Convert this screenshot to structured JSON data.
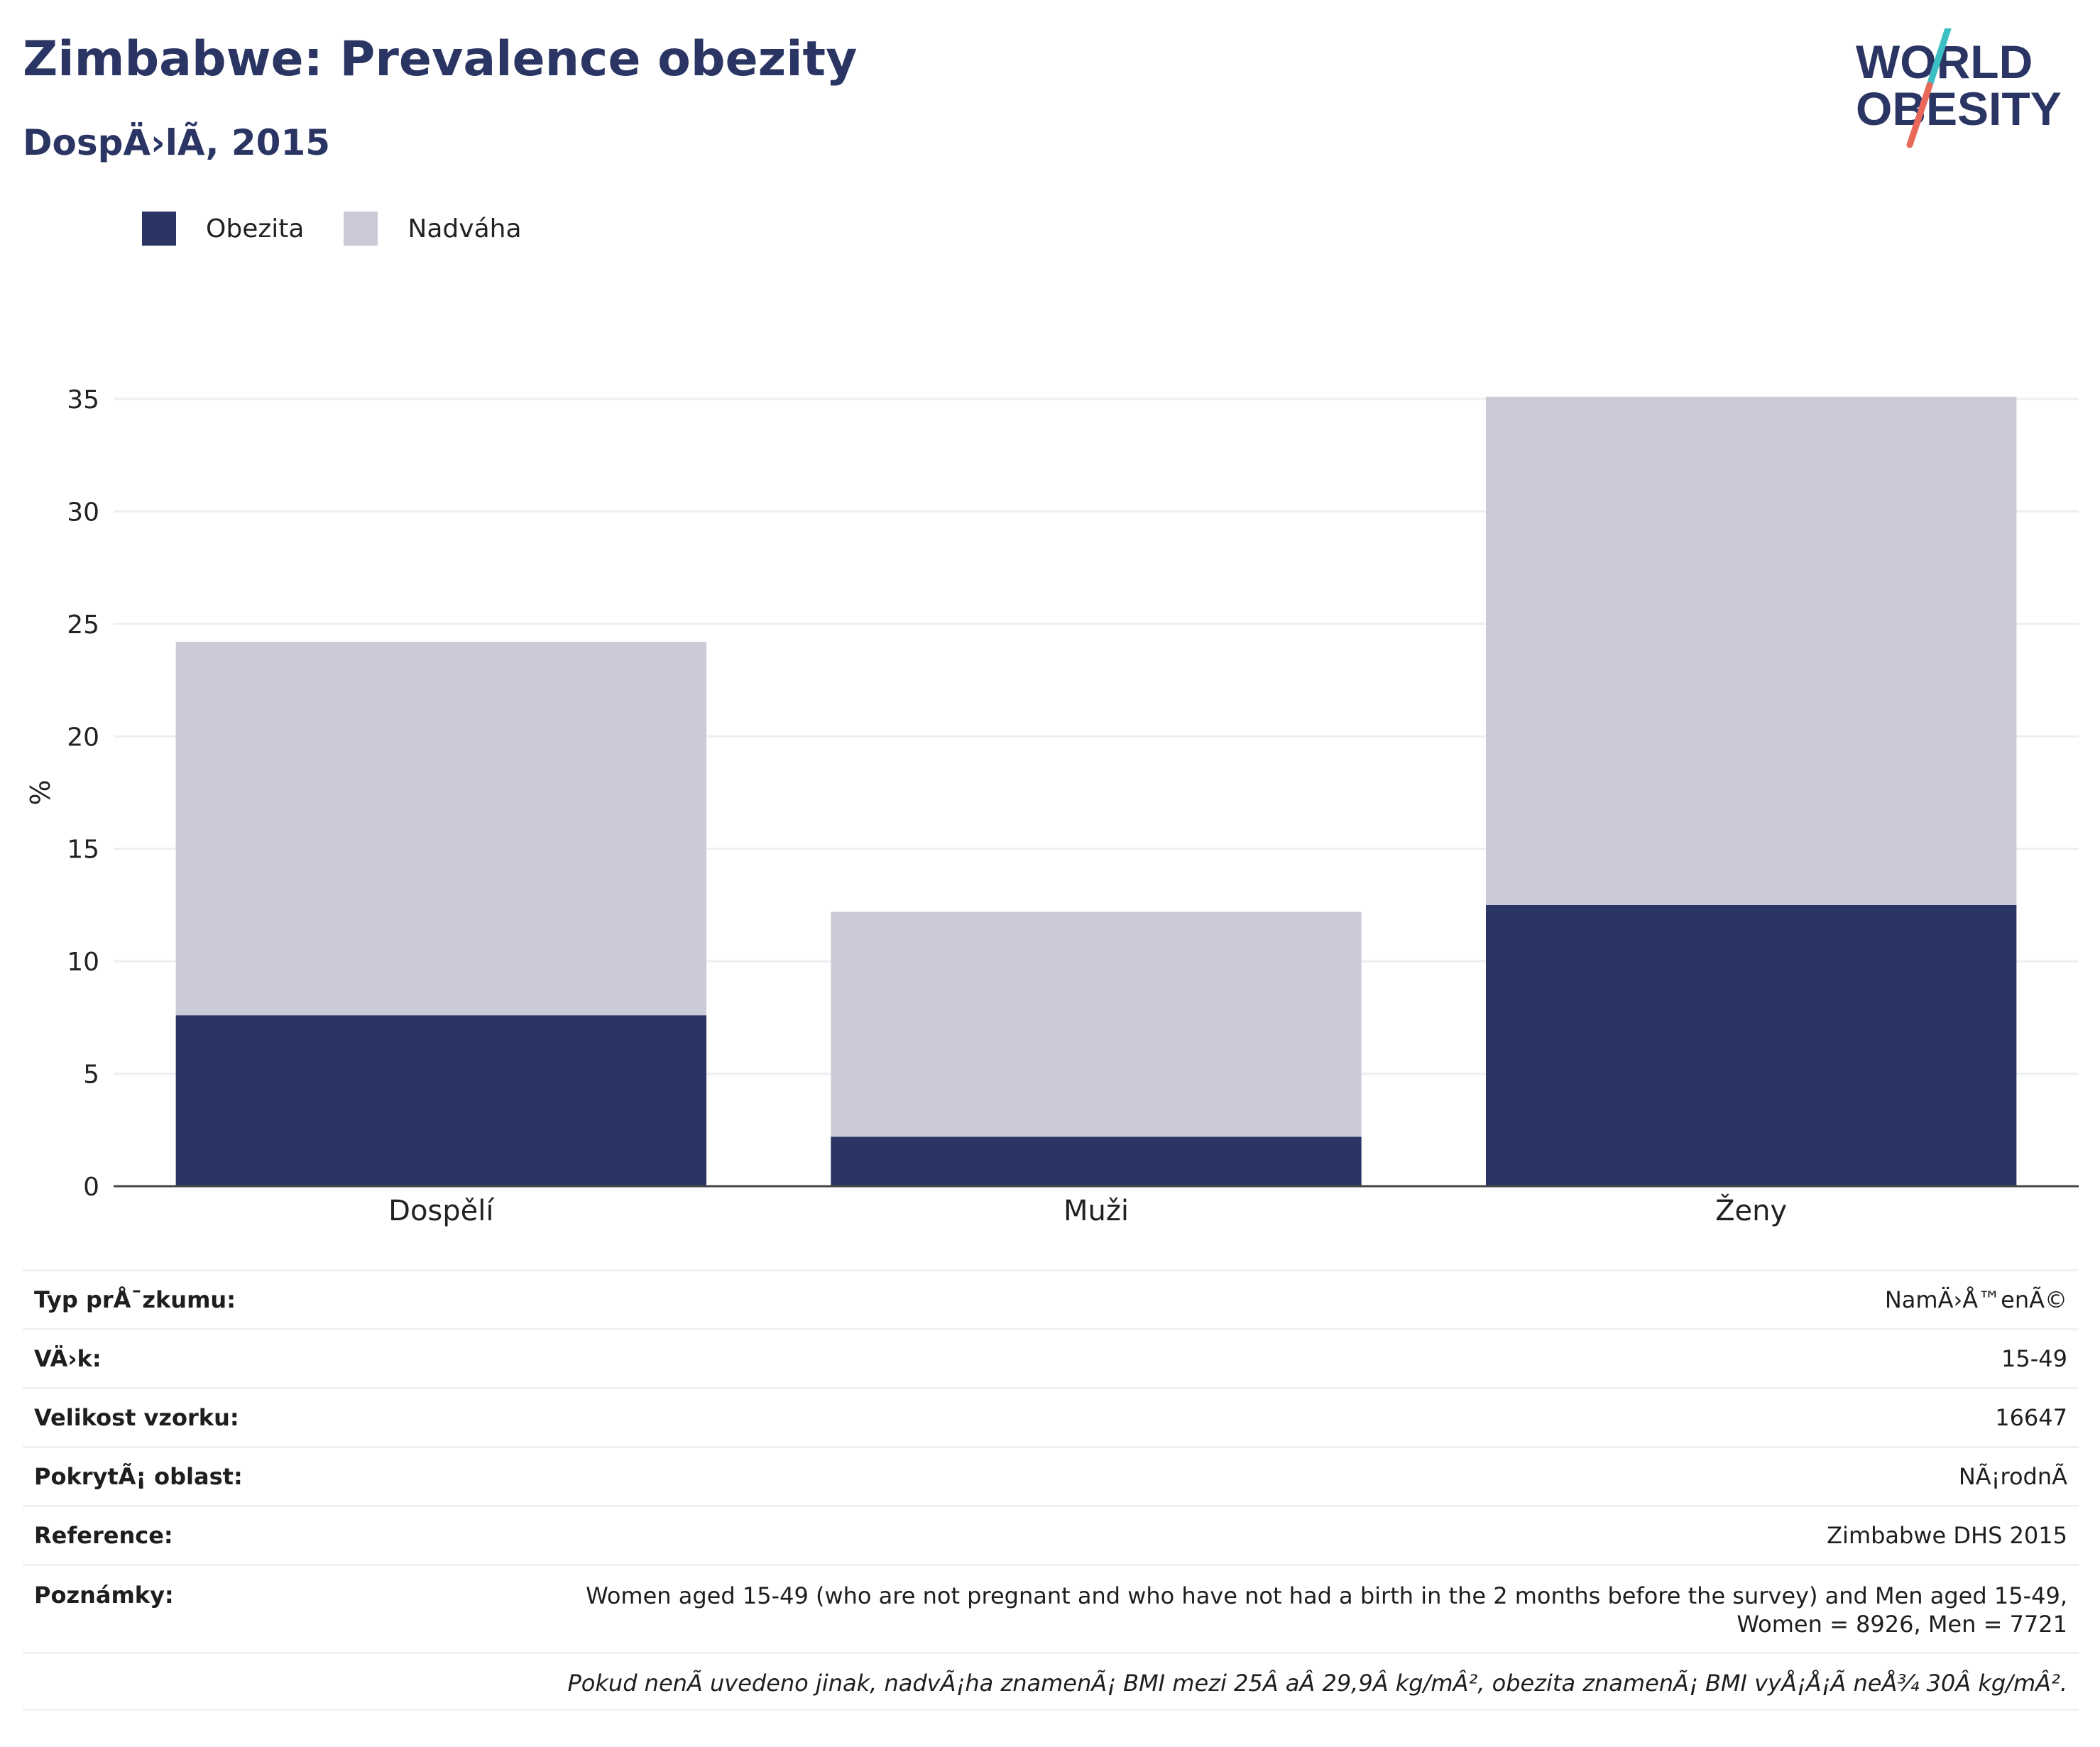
{
  "header": {
    "title": "Zimbabwe: Prevalence obezity",
    "subtitle": "DospÄ›lÃ­, 2015"
  },
  "logo": {
    "line1": "WORLD",
    "line2": "OBESITY",
    "accent_teal": "#3bbfc3",
    "accent_red": "#e8685a"
  },
  "legend": {
    "items": [
      {
        "label": "Obezita",
        "color": "#2a3563"
      },
      {
        "label": "Nadváha",
        "color": "#cacbd6"
      }
    ]
  },
  "chart_data": {
    "type": "bar",
    "stacked": true,
    "categories": [
      "Dospělí",
      "Muži",
      "Ženy"
    ],
    "series": [
      {
        "name": "Obezita",
        "values": [
          7.6,
          2.2,
          12.5
        ],
        "color": "#2a3563"
      },
      {
        "name": "Nadváha",
        "values": [
          16.6,
          10.0,
          22.6
        ],
        "color": "#cacbd6"
      }
    ],
    "ylabel": "%",
    "ylim": [
      0,
      35
    ],
    "yticks": [
      0,
      5,
      10,
      15,
      20,
      25,
      30,
      35
    ],
    "grid": true,
    "legend_position": "top-left"
  },
  "info_table": {
    "rows": [
      {
        "key": "Typ prÅ¯zkumu:",
        "value": "NamÄ›Å™enÃ©"
      },
      {
        "key": "VÄ›k:",
        "value": "15-49"
      },
      {
        "key": "Velikost vzorku:",
        "value": "16647"
      },
      {
        "key": "PokrytÃ¡ oblast:",
        "value": "NÃ¡rodnÃ­"
      },
      {
        "key": "Reference:",
        "value": "Zimbabwe DHS 2015"
      },
      {
        "key": "Poznámky:",
        "value_lines": [
          "Women aged 15-49 (who are not pregnant and who have not had a birth in the 2 months before the survey) and Men aged 15-49,",
          "Women = 8926, Men = 7721"
        ]
      }
    ],
    "footnote": "Pokud nenÃ­ uvedeno jinak, nadvÃ¡ha znamenÃ¡ BMI mezi 25Â aÂ 29,9Â kg/mÂ², obezita znamenÃ¡ BMI vyÅ¡Å¡Ã­ neÅ¾ 30Â kg/mÂ²."
  }
}
